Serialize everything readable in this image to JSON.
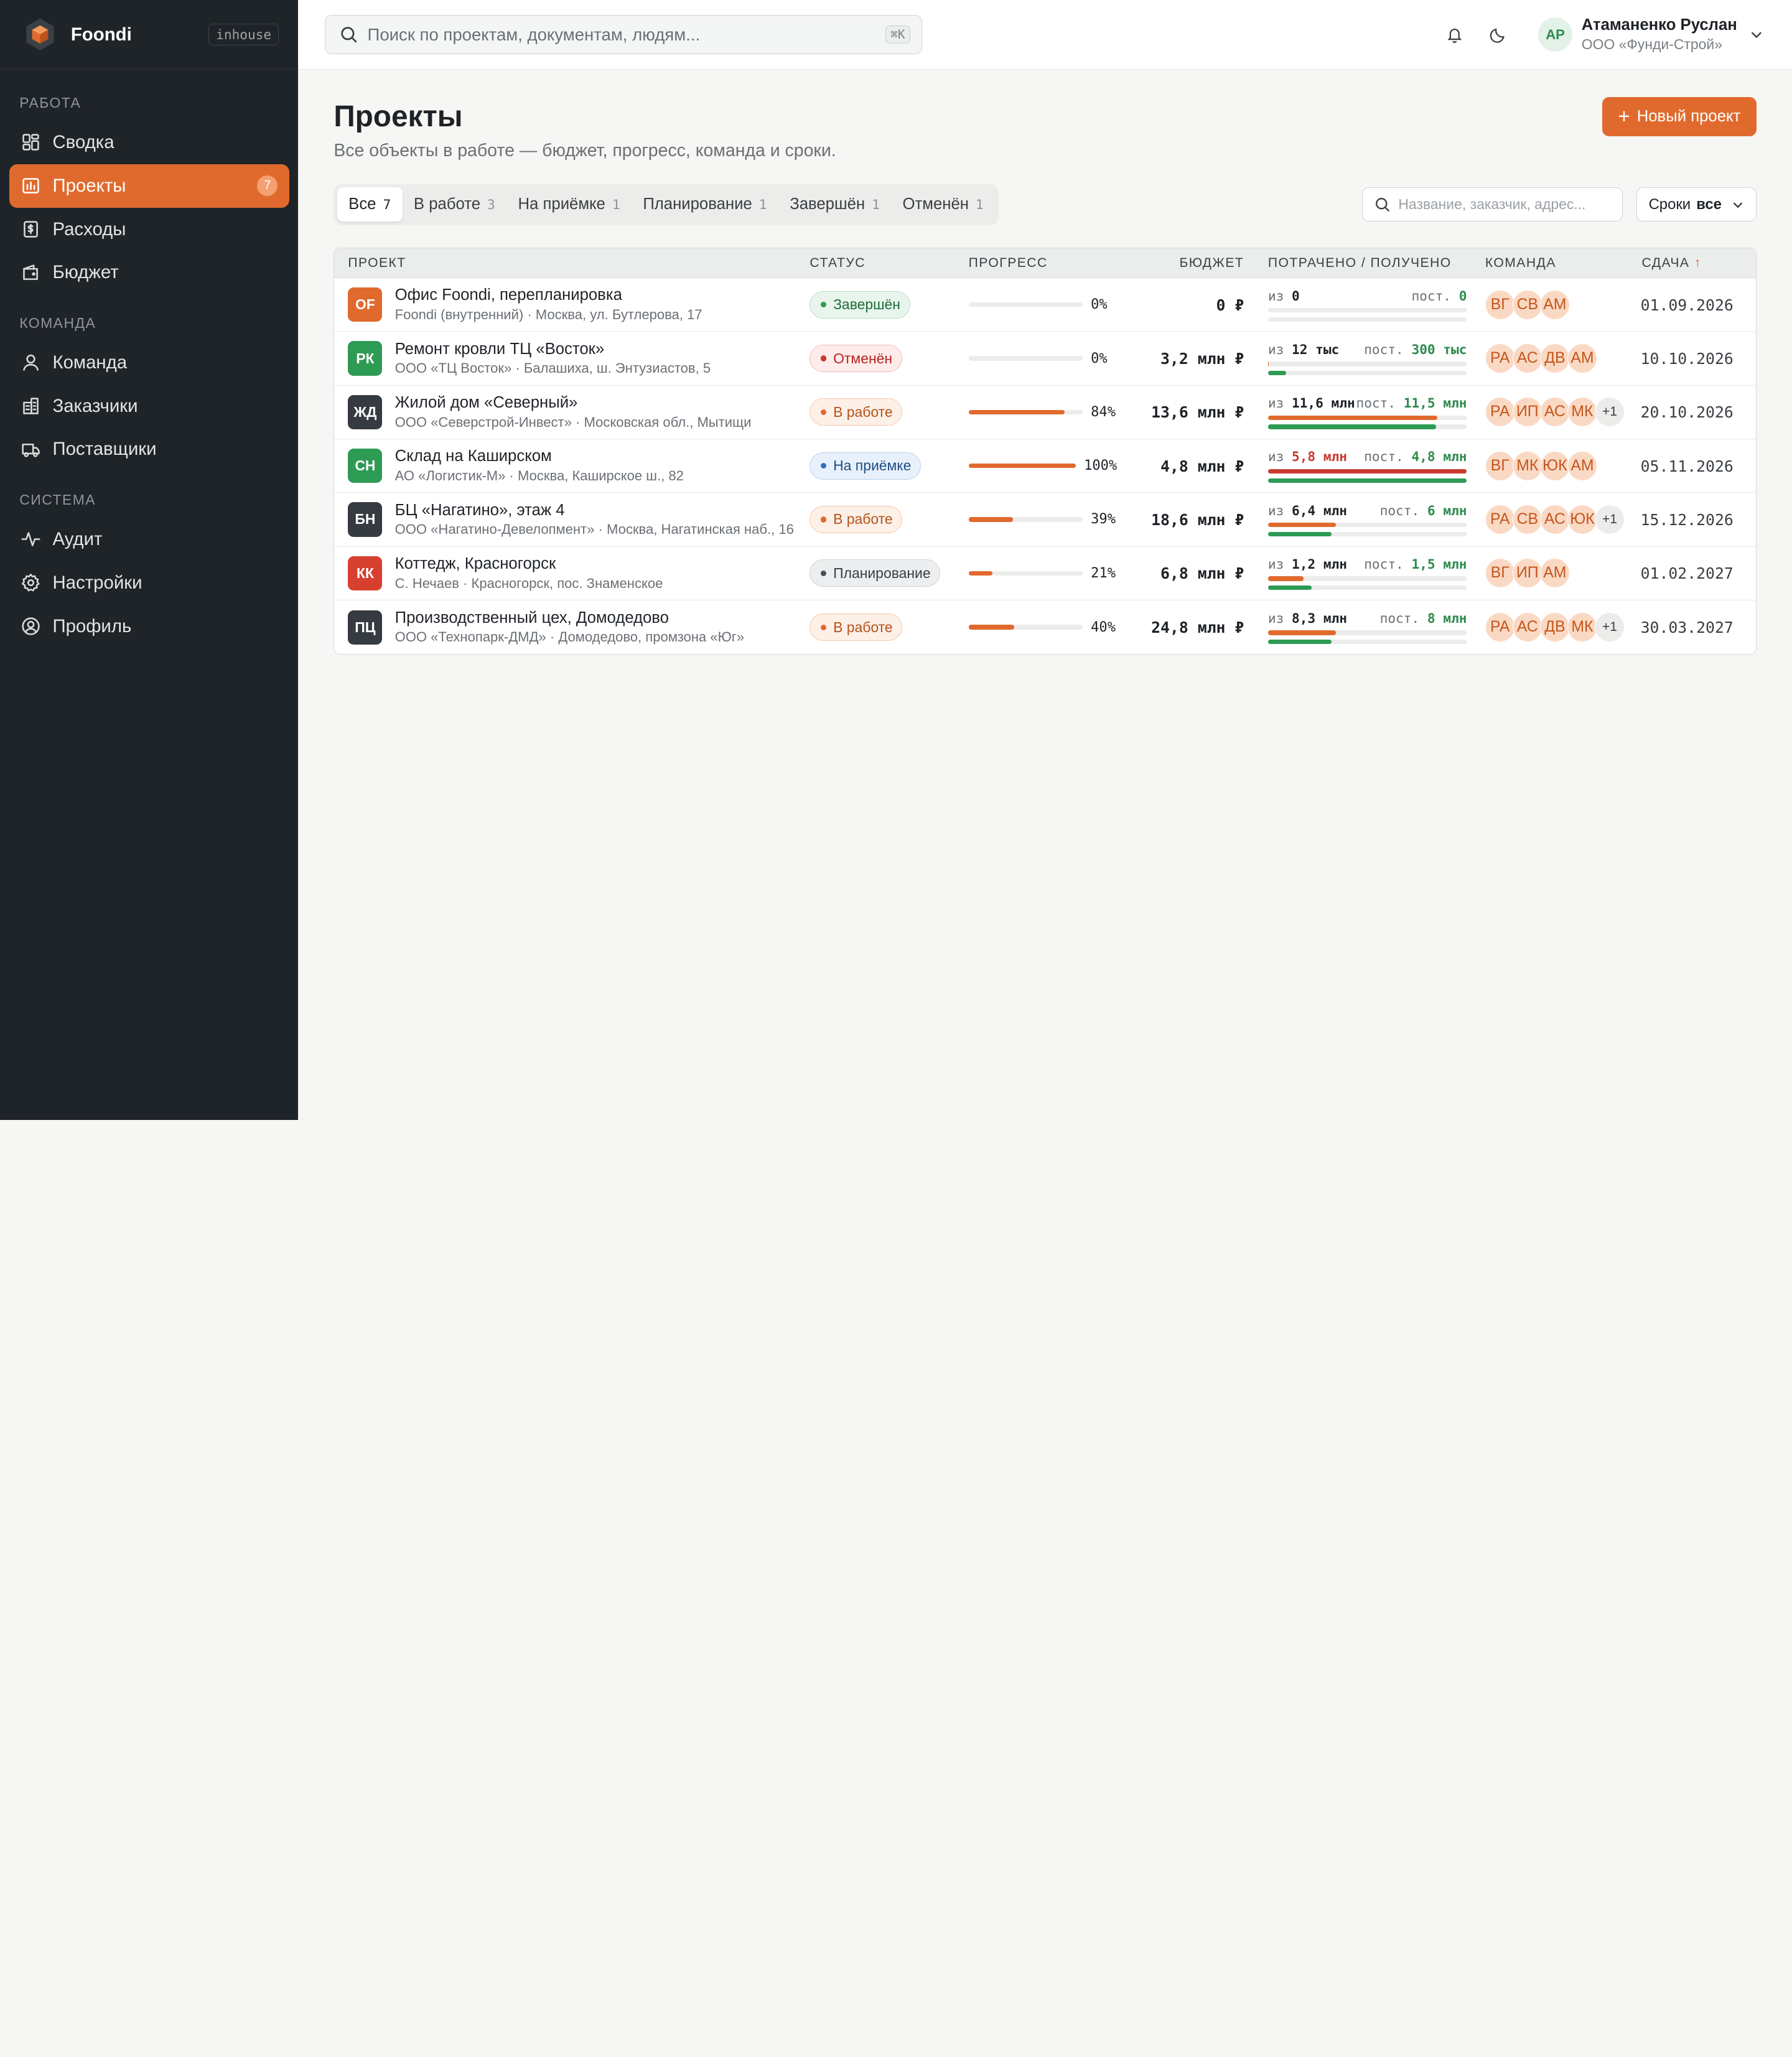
{
  "brand": {
    "name": "Foondi",
    "tag": "inhouse"
  },
  "sidebar": {
    "sections": [
      {
        "title": "РАБОТА",
        "items": [
          {
            "label": "Сводка",
            "icon": "dashboard-icon"
          },
          {
            "label": "Проекты",
            "icon": "projects-icon",
            "badge": "7",
            "active": true
          },
          {
            "label": "Расходы",
            "icon": "expenses-icon"
          },
          {
            "label": "Бюджет",
            "icon": "wallet-icon"
          }
        ]
      },
      {
        "title": "КОМАНДА",
        "items": [
          {
            "label": "Команда",
            "icon": "user-icon"
          },
          {
            "label": "Заказчики",
            "icon": "building-icon"
          },
          {
            "label": "Поставщики",
            "icon": "truck-icon"
          }
        ]
      },
      {
        "title": "СИСТЕМА",
        "items": [
          {
            "label": "Аудит",
            "icon": "activity-icon"
          },
          {
            "label": "Настройки",
            "icon": "gear-icon"
          },
          {
            "label": "Профиль",
            "icon": "profile-icon"
          }
        ]
      }
    ]
  },
  "topbar": {
    "search_placeholder": "Поиск по проектам, документам, людям...",
    "search_shortcut": "⌘K",
    "user": {
      "initials": "АР",
      "name": "Атаманенко Руслан",
      "org": "ООО «Фунди-Строй»"
    }
  },
  "page": {
    "title": "Проекты",
    "subtitle": "Все объекты в работе — бюджет, прогресс, команда и сроки.",
    "new_button": "Новый проект"
  },
  "tabs": [
    {
      "label": "Все",
      "count": "7",
      "active": true
    },
    {
      "label": "В работе",
      "count": "3"
    },
    {
      "label": "На приёмке",
      "count": "1"
    },
    {
      "label": "Планирование",
      "count": "1"
    },
    {
      "label": "Завершён",
      "count": "1"
    },
    {
      "label": "Отменён",
      "count": "1"
    }
  ],
  "filter": {
    "search_placeholder": "Название, заказчик, адрес...",
    "deadline_label": "Сроки",
    "deadline_value": "все"
  },
  "table": {
    "columns": {
      "project": "ПРОЕКТ",
      "status": "СТАТУС",
      "progress": "ПРОГРЕСС",
      "budget": "БЮДЖЕТ",
      "spent": "ПОТРАЧЕНО / ПОЛУЧЕНО",
      "team": "КОМАНДА",
      "deadline": "СДАЧА",
      "sort_arrow": "↑"
    },
    "rows": [
      {
        "code": "OF",
        "color": "#e06a2e",
        "name": "Офис Foondi, перепланировка",
        "sub": "Foondi (внутренний) · Москва, ул. Бутлерова, 17",
        "status": "Завершён",
        "status_kind": "done",
        "progress": 0,
        "progress_text": "0%",
        "budget": "0 ₽",
        "spent_prefix": "из",
        "spent": "0",
        "spent_over": false,
        "spent_ratio": 0,
        "received_prefix": "пост.",
        "received": "0",
        "received_ratio": 0,
        "team": [
          "ВГ",
          "СВ",
          "АМ"
        ],
        "team_more": "",
        "deadline": "01.09.2026"
      },
      {
        "code": "РК",
        "color": "#2e9b55",
        "name": "Ремонт кровли ТЦ «Восток»",
        "sub": "ООО «ТЦ Восток» · Балашиха, ш. Энтузиастов, 5",
        "status": "Отменён",
        "status_kind": "cancel",
        "progress": 0,
        "progress_text": "0%",
        "budget": "3,2 млн ₽",
        "spent_prefix": "из",
        "spent": "12 тыс",
        "spent_over": false,
        "spent_ratio": 0.004,
        "received_prefix": "пост.",
        "received": "300 тыс",
        "received_ratio": 0.09,
        "team": [
          "РА",
          "АС",
          "ДВ",
          "АМ"
        ],
        "team_more": "",
        "deadline": "10.10.2026"
      },
      {
        "code": "ЖД",
        "color": "#353b40",
        "name": "Жилой дом «Северный»",
        "sub": "ООО «Северстрой-Инвест» · Московская обл., Мытищи",
        "status": "В работе",
        "status_kind": "work",
        "progress": 84,
        "progress_text": "84%",
        "budget": "13,6 млн ₽",
        "spent_prefix": "из",
        "spent": "11,6 млн",
        "spent_over": false,
        "spent_ratio": 0.85,
        "received_prefix": "пост.",
        "received": "11,5 млн",
        "received_ratio": 0.845,
        "team": [
          "РА",
          "ИП",
          "АС",
          "МК"
        ],
        "team_more": "+1",
        "deadline": "20.10.2026"
      },
      {
        "code": "СН",
        "color": "#2e9b55",
        "name": "Склад на Каширском",
        "sub": "АО «Логистик-М» · Москва, Каширское ш., 82",
        "status": "На приёмке",
        "status_kind": "accept",
        "progress": 100,
        "progress_text": "100%",
        "budget": "4,8 млн ₽",
        "spent_prefix": "из",
        "spent": "5,8 млн",
        "spent_over": true,
        "spent_ratio": 1,
        "received_prefix": "пост.",
        "received": "4,8 млн",
        "received_ratio": 1,
        "team": [
          "ВГ",
          "МК",
          "ЮК",
          "АМ"
        ],
        "team_more": "",
        "deadline": "05.11.2026"
      },
      {
        "code": "БН",
        "color": "#353b40",
        "name": "БЦ «Нагатино», этаж 4",
        "sub": "ООО «Нагатино-Девелопмент» · Москва, Нагатинская наб., 16",
        "status": "В работе",
        "status_kind": "work",
        "progress": 39,
        "progress_text": "39%",
        "budget": "18,6 млн ₽",
        "spent_prefix": "из",
        "spent": "6,4 млн",
        "spent_over": false,
        "spent_ratio": 0.34,
        "received_prefix": "пост.",
        "received": "6 млн",
        "received_ratio": 0.32,
        "team": [
          "РА",
          "СВ",
          "АС",
          "ЮК"
        ],
        "team_more": "+1",
        "deadline": "15.12.2026"
      },
      {
        "code": "КК",
        "color": "#d7402f",
        "name": "Коттедж, Красногорск",
        "sub": "С. Нечаев · Красногорск, пос. Знаменское",
        "status": "Планирование",
        "status_kind": "plan",
        "progress": 21,
        "progress_text": "21%",
        "budget": "6,8 млн ₽",
        "spent_prefix": "из",
        "spent": "1,2 млн",
        "spent_over": false,
        "spent_ratio": 0.18,
        "received_prefix": "пост.",
        "received": "1,5 млн",
        "received_ratio": 0.22,
        "team": [
          "ВГ",
          "ИП",
          "АМ"
        ],
        "team_more": "",
        "deadline": "01.02.2027"
      },
      {
        "code": "ПЦ",
        "color": "#353b40",
        "name": "Производственный цех, Домодедово",
        "sub": "ООО «Технопарк-ДМД» · Домодедово, промзона «Юг»",
        "status": "В работе",
        "status_kind": "work",
        "progress": 40,
        "progress_text": "40%",
        "budget": "24,8 млн ₽",
        "spent_prefix": "из",
        "spent": "8,3 млн",
        "spent_over": false,
        "spent_ratio": 0.34,
        "received_prefix": "пост.",
        "received": "8 млн",
        "received_ratio": 0.32,
        "team": [
          "РА",
          "АС",
          "ДВ",
          "МК"
        ],
        "team_more": "+1",
        "deadline": "30.03.2027"
      }
    ]
  },
  "colors": {
    "accent": "#e06a2e",
    "sidebar_bg": "#1f2428",
    "success": "#2e9b55",
    "danger": "#c93a2f"
  }
}
